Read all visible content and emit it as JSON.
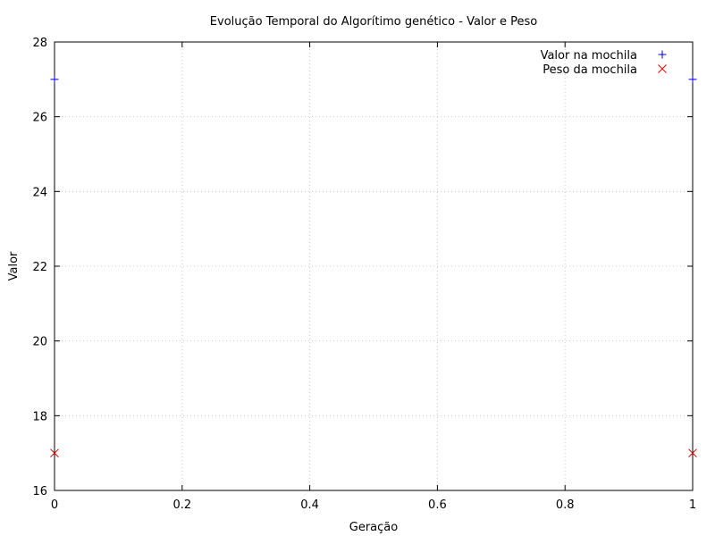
{
  "chart_data": {
    "type": "scatter",
    "title": "Evolução Temporal do Algorítimo genético - Valor e Peso",
    "xlabel": "Geração",
    "ylabel": "Valor",
    "xlim": [
      0,
      1
    ],
    "ylim": [
      16,
      28
    ],
    "xticks": [
      0,
      0.2,
      0.4,
      0.6,
      0.8,
      1
    ],
    "xtick_labels": [
      "0",
      "0.2",
      "0.4",
      "0.6",
      "0.8",
      "1"
    ],
    "yticks": [
      16,
      18,
      20,
      22,
      24,
      26,
      28
    ],
    "ytick_labels": [
      "16",
      "18",
      "20",
      "22",
      "24",
      "26",
      "28"
    ],
    "grid": true,
    "legend_position": "top-right",
    "series": [
      {
        "name": "Valor na mochila",
        "marker": "plus",
        "color": "#0000cc",
        "x": [
          0,
          1
        ],
        "y": [
          27,
          27
        ]
      },
      {
        "name": "Peso da mochila",
        "marker": "cross",
        "color": "#dd0000",
        "x": [
          0,
          1
        ],
        "y": [
          17,
          17
        ]
      }
    ]
  }
}
